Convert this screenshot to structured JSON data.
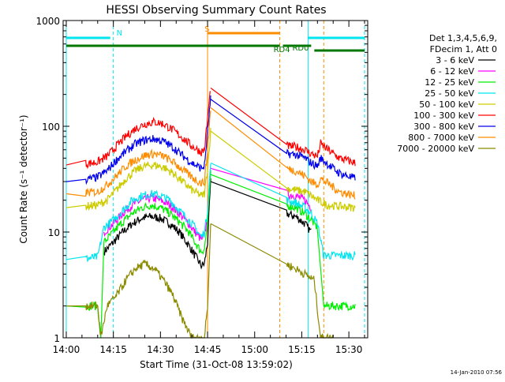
{
  "chart_data": {
    "type": "line",
    "title": "HESSI Observing Summary Count Rates",
    "xlabel": "Start Time (31-Oct-08 13:59:02)",
    "ylabel": "Count Rate (s⁻¹ detector⁻¹)",
    "x_unit": "time of day",
    "xlim": [
      "13:59",
      "15:36"
    ],
    "ylim": [
      1,
      1000
    ],
    "yscale": "log",
    "x_ticks": [
      "14:00",
      "14:15",
      "14:30",
      "14:45",
      "15:00",
      "15:15",
      "15:30"
    ],
    "y_ticks": [
      "1",
      "10",
      "100",
      "1000"
    ],
    "grid": false,
    "legend_position": "right",
    "legend_header": [
      "Det 1,3,4,5,6,9,",
      "FDecim 1, Att 0"
    ],
    "footer_date": "14-Jan-2010 07:56",
    "series": [
      {
        "name": "3 - 6 keV",
        "color": "#000000",
        "points": [
          [
            "14:12",
            6.5
          ],
          [
            "14:15",
            8
          ],
          [
            "14:18",
            10
          ],
          [
            "14:21",
            12
          ],
          [
            "14:24",
            13.5
          ],
          [
            "14:27",
            14
          ],
          [
            "14:30",
            13.5
          ],
          [
            "14:33",
            12
          ],
          [
            "14:36",
            10
          ],
          [
            "14:39",
            7.5
          ],
          [
            "14:41",
            6
          ],
          [
            "14:43",
            4.8
          ],
          [
            "14:44",
            5
          ],
          [
            "14:45",
            8
          ],
          [
            "14:46",
            30
          ],
          [
            "15:10",
            15
          ],
          [
            "15:13",
            14
          ],
          [
            "15:16",
            12
          ],
          [
            "15:18",
            10
          ]
        ]
      },
      {
        "name": "6 - 12 keV",
        "color": "#ff00ff",
        "points": [
          [
            "14:12",
            10
          ],
          [
            "14:15",
            12
          ],
          [
            "14:18",
            15
          ],
          [
            "14:21",
            18
          ],
          [
            "14:24",
            20
          ],
          [
            "14:27",
            21
          ],
          [
            "14:30",
            20
          ],
          [
            "14:33",
            18
          ],
          [
            "14:36",
            15
          ],
          [
            "14:39",
            12
          ],
          [
            "14:41",
            10
          ],
          [
            "14:43",
            8.5
          ],
          [
            "14:44",
            9
          ],
          [
            "14:45",
            14
          ],
          [
            "14:46",
            40
          ],
          [
            "15:10",
            23
          ],
          [
            "15:13",
            22
          ],
          [
            "15:16",
            20
          ],
          [
            "15:18",
            17
          ]
        ]
      },
      {
        "name": "12 - 25 keV",
        "color": "#00ee00",
        "points": [
          [
            "14:00",
            2
          ],
          [
            "14:06",
            2
          ],
          [
            "14:10",
            2
          ],
          [
            "14:11",
            1
          ],
          [
            "14:12",
            8
          ],
          [
            "14:15",
            10
          ],
          [
            "14:18",
            12.5
          ],
          [
            "14:21",
            15
          ],
          [
            "14:24",
            17
          ],
          [
            "14:27",
            18
          ],
          [
            "14:30",
            17
          ],
          [
            "14:33",
            15
          ],
          [
            "14:36",
            12.5
          ],
          [
            "14:39",
            10
          ],
          [
            "14:41",
            8
          ],
          [
            "14:43",
            6.5
          ],
          [
            "14:44",
            7
          ],
          [
            "14:45",
            12
          ],
          [
            "14:46",
            35
          ],
          [
            "15:10",
            18
          ],
          [
            "15:13",
            17
          ],
          [
            "15:16",
            15
          ],
          [
            "15:18",
            13
          ],
          [
            "15:20",
            11
          ],
          [
            "15:22",
            2
          ],
          [
            "15:27",
            2
          ],
          [
            "15:32",
            2
          ]
        ]
      },
      {
        "name": "25 - 50 keV",
        "color": "#00e5ee",
        "points": [
          [
            "14:00",
            5.5
          ],
          [
            "14:06",
            5.6
          ],
          [
            "14:10",
            5.8
          ],
          [
            "14:12",
            11
          ],
          [
            "14:15",
            13
          ],
          [
            "14:18",
            16
          ],
          [
            "14:21",
            20
          ],
          [
            "14:24",
            22
          ],
          [
            "14:27",
            23
          ],
          [
            "14:30",
            22
          ],
          [
            "14:33",
            20
          ],
          [
            "14:36",
            16
          ],
          [
            "14:39",
            13
          ],
          [
            "14:41",
            11
          ],
          [
            "14:43",
            9
          ],
          [
            "14:44",
            10
          ],
          [
            "14:45",
            16
          ],
          [
            "14:46",
            45
          ],
          [
            "15:10",
            20
          ],
          [
            "15:13",
            19
          ],
          [
            "15:16",
            17
          ],
          [
            "15:18",
            15
          ],
          [
            "15:20",
            12
          ],
          [
            "15:22",
            6
          ],
          [
            "15:27",
            6
          ],
          [
            "15:32",
            6
          ]
        ]
      },
      {
        "name": "50 - 100 keV",
        "color": "#cccc00",
        "points": [
          [
            "14:00",
            17
          ],
          [
            "14:06",
            17.5
          ],
          [
            "14:10",
            18
          ],
          [
            "14:13",
            20
          ],
          [
            "14:16",
            25
          ],
          [
            "14:19",
            32
          ],
          [
            "14:22",
            38
          ],
          [
            "14:25",
            42
          ],
          [
            "14:28",
            43
          ],
          [
            "14:31",
            41
          ],
          [
            "14:34",
            36
          ],
          [
            "14:37",
            30
          ],
          [
            "14:40",
            25
          ],
          [
            "14:43",
            22
          ],
          [
            "14:44",
            23
          ],
          [
            "14:45",
            40
          ],
          [
            "14:46",
            90
          ],
          [
            "15:10",
            26
          ],
          [
            "15:13",
            25
          ],
          [
            "15:16",
            24
          ],
          [
            "15:18",
            22
          ],
          [
            "15:20",
            20
          ],
          [
            "15:23",
            18
          ],
          [
            "15:27",
            17.5
          ],
          [
            "15:32",
            17
          ]
        ]
      },
      {
        "name": "100 - 300 keV",
        "color": "#ff0000",
        "points": [
          [
            "14:00",
            43
          ],
          [
            "14:06",
            44
          ],
          [
            "14:10",
            46
          ],
          [
            "14:13",
            52
          ],
          [
            "14:16",
            65
          ],
          [
            "14:19",
            80
          ],
          [
            "14:22",
            95
          ],
          [
            "14:25",
            105
          ],
          [
            "14:28",
            110
          ],
          [
            "14:31",
            105
          ],
          [
            "14:34",
            92
          ],
          [
            "14:37",
            78
          ],
          [
            "14:40",
            65
          ],
          [
            "14:43",
            57
          ],
          [
            "14:44",
            60
          ],
          [
            "14:45",
            120
          ],
          [
            "14:46",
            230
          ],
          [
            "15:10",
            65
          ],
          [
            "15:13",
            64
          ],
          [
            "15:16",
            60
          ],
          [
            "15:18",
            55
          ],
          [
            "15:20",
            52
          ],
          [
            "15:21",
            68
          ],
          [
            "15:24",
            58
          ],
          [
            "15:27",
            50
          ],
          [
            "15:32",
            45
          ]
        ]
      },
      {
        "name": "300 - 800 keV",
        "color": "#0000ee",
        "points": [
          [
            "14:00",
            30
          ],
          [
            "14:06",
            31
          ],
          [
            "14:10",
            33
          ],
          [
            "14:13",
            38
          ],
          [
            "14:16",
            48
          ],
          [
            "14:19",
            58
          ],
          [
            "14:22",
            68
          ],
          [
            "14:25",
            74
          ],
          [
            "14:28",
            76
          ],
          [
            "14:31",
            72
          ],
          [
            "14:34",
            63
          ],
          [
            "14:37",
            53
          ],
          [
            "14:40",
            45
          ],
          [
            "14:43",
            40
          ],
          [
            "14:44",
            42
          ],
          [
            "14:45",
            90
          ],
          [
            "14:46",
            180
          ],
          [
            "15:10",
            55
          ],
          [
            "15:13",
            54
          ],
          [
            "15:16",
            50
          ],
          [
            "15:18",
            45
          ],
          [
            "15:20",
            42
          ],
          [
            "15:21",
            50
          ],
          [
            "15:24",
            42
          ],
          [
            "15:27",
            36
          ],
          [
            "15:32",
            32
          ]
        ]
      },
      {
        "name": "800 - 7000 keV",
        "color": "#ff8c00",
        "points": [
          [
            "14:00",
            23
          ],
          [
            "14:06",
            23.5
          ],
          [
            "14:10",
            24
          ],
          [
            "14:13",
            28
          ],
          [
            "14:16",
            34
          ],
          [
            "14:19",
            42
          ],
          [
            "14:22",
            48
          ],
          [
            "14:25",
            53
          ],
          [
            "14:28",
            55
          ],
          [
            "14:31",
            52
          ],
          [
            "14:34",
            46
          ],
          [
            "14:37",
            39
          ],
          [
            "14:40",
            33
          ],
          [
            "14:43",
            29
          ],
          [
            "14:44",
            30
          ],
          [
            "14:45",
            60
          ],
          [
            "14:46",
            150
          ],
          [
            "15:10",
            40
          ],
          [
            "15:13",
            38
          ],
          [
            "15:16",
            34
          ],
          [
            "15:18",
            30
          ],
          [
            "15:20",
            28
          ],
          [
            "15:21",
            32
          ],
          [
            "15:24",
            28
          ],
          [
            "15:27",
            24
          ],
          [
            "15:32",
            22
          ]
        ]
      },
      {
        "name": "7000 - 20000 keV",
        "color": "#8b8b00",
        "points": [
          [
            "14:00",
            2
          ],
          [
            "14:06",
            2
          ],
          [
            "14:10",
            2
          ],
          [
            "14:11",
            1
          ],
          [
            "14:13",
            2
          ],
          [
            "14:16",
            2.5
          ],
          [
            "14:19",
            3.5
          ],
          [
            "14:22",
            4.5
          ],
          [
            "14:25",
            5
          ],
          [
            "14:28",
            4.5
          ],
          [
            "14:31",
            3.5
          ],
          [
            "14:34",
            2.5
          ],
          [
            "14:37",
            1.5
          ],
          [
            "14:40",
            1
          ],
          [
            "14:44",
            1
          ],
          [
            "14:45",
            2
          ],
          [
            "14:46",
            12
          ],
          [
            "15:10",
            5
          ],
          [
            "15:13",
            4.5
          ],
          [
            "15:16",
            4
          ],
          [
            "15:19",
            3.5
          ],
          [
            "15:21",
            1
          ],
          [
            "15:25",
            1
          ]
        ]
      }
    ],
    "vertical_lines": [
      {
        "time": "14:00",
        "style": "solid",
        "color": "#00e5ee"
      },
      {
        "time": "14:15",
        "style": "dashed",
        "color": "#00e5ee"
      },
      {
        "time": "14:45",
        "style": "solid",
        "color": "#ff8c00"
      },
      {
        "time": "15:08",
        "style": "dashed",
        "color": "#ff8c00"
      },
      {
        "time": "15:17",
        "style": "solid",
        "color": "#00e5ee"
      },
      {
        "time": "15:22",
        "style": "dashed",
        "color": "#ff8c00"
      },
      {
        "time": "15:35",
        "style": "dashed",
        "color": "#00e5ee"
      }
    ],
    "flag_bars": [
      {
        "label": "N",
        "color": "#00e5ee",
        "ranges": [
          [
            "14:00",
            "14:14"
          ],
          [
            "15:17",
            "15:35"
          ]
        ]
      },
      {
        "label": "S",
        "color": "#ff8c00",
        "ranges": [
          [
            "14:45",
            "15:08"
          ]
        ]
      },
      {
        "label": "RD0",
        "color": "#007700",
        "ranges": [
          [
            "15:19",
            "15:35"
          ]
        ]
      },
      {
        "label": "RD4",
        "color": "#007700",
        "ranges": [
          [
            "14:00",
            "15:08"
          ],
          [
            "15:09",
            "15:18"
          ]
        ]
      }
    ]
  }
}
